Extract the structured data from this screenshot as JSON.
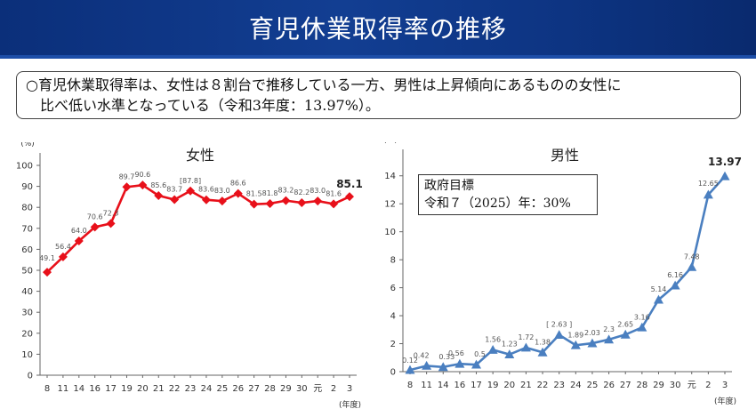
{
  "header": {
    "title": "育児休業取得率の推移"
  },
  "summary": {
    "line1": "○育児休業取得率は、女性は８割台で推移している一方、男性は上昇傾向にあるものの女性に",
    "line2": "比べ低い水準となっている（令和3年度：13.97%）。"
  },
  "goal_box": {
    "line1": "政府目標",
    "line2": "令和７（2025）年：30%"
  },
  "colors": {
    "female_series": "#e8101a",
    "male_series": "#4a7fc0",
    "header_bg": "#0f3a8e"
  },
  "chart_data": [
    {
      "type": "line",
      "title": "女性",
      "ylabel": "(%)",
      "xlabel": "(年度)",
      "ylim": [
        0,
        100
      ],
      "yticks": [
        "0",
        "10",
        "20",
        "30",
        "40",
        "50",
        "60",
        "70",
        "80",
        "90",
        "100"
      ],
      "categories": [
        "8",
        "11",
        "14",
        "16",
        "17",
        "19",
        "20",
        "21",
        "22",
        "23",
        "24",
        "25",
        "26",
        "27",
        "28",
        "29",
        "30",
        "元",
        "2",
        "3"
      ],
      "values": [
        49.1,
        56.4,
        64.0,
        70.6,
        72.3,
        89.7,
        90.6,
        85.6,
        83.7,
        87.8,
        83.6,
        83.0,
        86.6,
        81.5,
        81.8,
        83.2,
        82.2,
        83.0,
        81.6,
        85.1
      ],
      "labels": [
        "49.1",
        "56.4",
        "64.0",
        "70.6",
        "72.3",
        "89.7",
        "90.6",
        "85.6",
        "83.7",
        "[87.8]",
        "83.6",
        "83.0",
        "86.6",
        "81.5",
        "81.8",
        "83.2",
        "82.2",
        "83.0",
        "81.6",
        "85.1"
      ],
      "marker": "diamond",
      "grid": false
    },
    {
      "type": "line",
      "title": "男性",
      "ylabel": "(%)",
      "xlabel": "(年度)",
      "ylim": [
        0,
        15
      ],
      "yticks": [
        "0",
        "2",
        "4",
        "6",
        "8",
        "10",
        "12",
        "14"
      ],
      "categories": [
        "8",
        "11",
        "14",
        "16",
        "17",
        "19",
        "20",
        "21",
        "22",
        "23",
        "24",
        "25",
        "26",
        "27",
        "28",
        "29",
        "30",
        "元",
        "2",
        "3"
      ],
      "values": [
        0.12,
        0.42,
        0.33,
        0.56,
        0.5,
        1.56,
        1.23,
        1.72,
        1.38,
        2.63,
        1.89,
        2.03,
        2.3,
        2.65,
        3.16,
        5.14,
        6.16,
        7.48,
        12.65,
        13.97
      ],
      "labels": [
        "0.12",
        "0.42",
        "0.33",
        "0.56",
        "0.5",
        "1.56",
        "1.23",
        "1.72",
        "1.38",
        "[ 2.63 ]",
        "1.89",
        "2.03",
        "2.3",
        "2.65",
        "3.16",
        "5.14",
        "6.16",
        "7.48",
        "12.65",
        "13.97"
      ],
      "marker": "triangle",
      "grid": false
    }
  ]
}
